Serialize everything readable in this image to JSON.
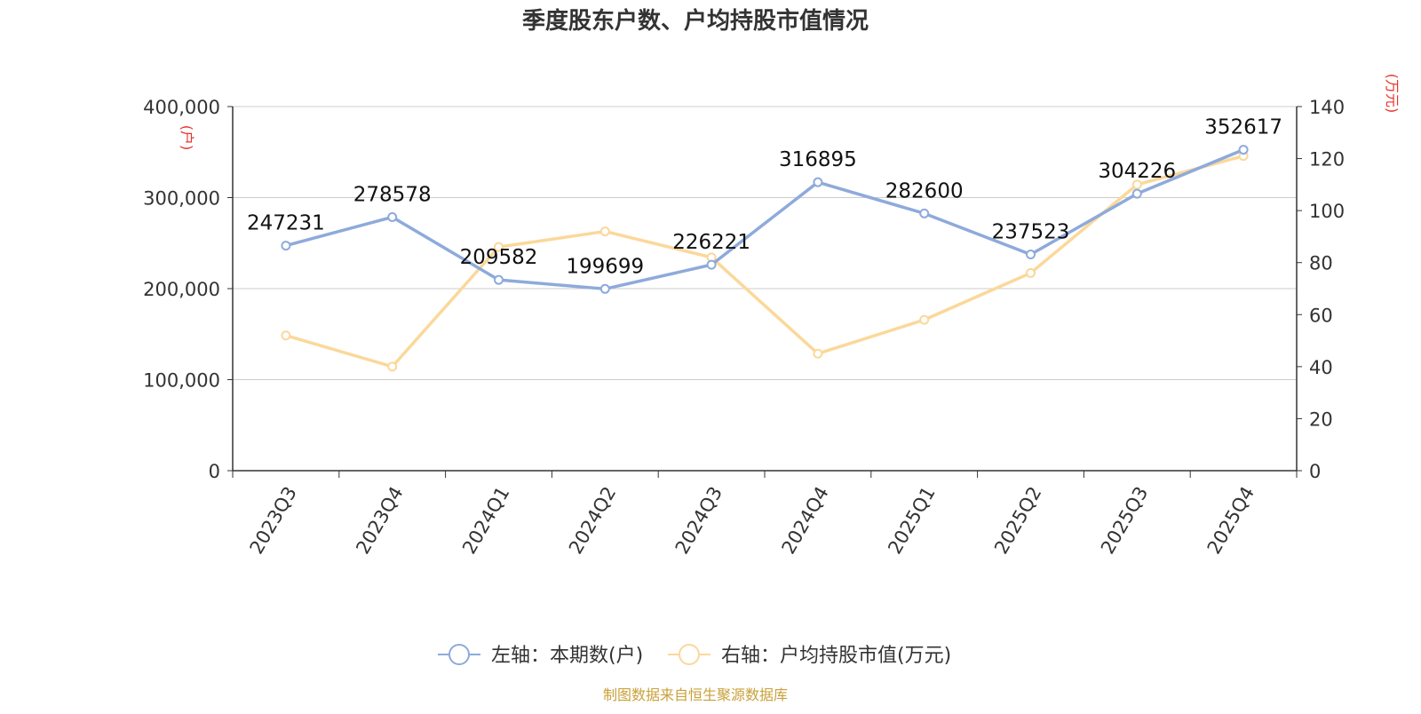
{
  "chart_data": {
    "type": "line",
    "title": "季度股东户数、户均持股市值情况",
    "categories": [
      "2023Q3",
      "2023Q4",
      "2024Q1",
      "2024Q2",
      "2024Q3",
      "2024Q4",
      "2025Q1",
      "2025Q2",
      "2025Q3",
      "2025Q4"
    ],
    "series": [
      {
        "name": "左轴：本期数(户)",
        "axis": "left",
        "color": "#8eaadb",
        "values": [
          247231,
          278578,
          209582,
          199699,
          226221,
          316895,
          282600,
          237523,
          304226,
          352617
        ],
        "data_labels": [
          "247231",
          "278578",
          "209582",
          "199699",
          "226221",
          "316895",
          "282600",
          "237523",
          "304226",
          "352617"
        ]
      },
      {
        "name": "右轴：户均持股市值(万元)",
        "axis": "right",
        "color": "#fbd89a",
        "values": [
          52,
          40,
          86,
          92,
          82,
          45,
          58,
          76,
          110,
          121
        ]
      }
    ],
    "left_axis": {
      "unit_label": "(户)",
      "ylim": [
        0,
        400000
      ],
      "ticks": [
        0,
        100000,
        200000,
        300000,
        400000
      ],
      "tick_labels": [
        "0",
        "100,000",
        "200,000",
        "300,000",
        "400,000"
      ]
    },
    "right_axis": {
      "unit_label": "(万元)",
      "ylim": [
        0,
        140
      ],
      "ticks": [
        0,
        20,
        40,
        60,
        80,
        100,
        120,
        140
      ],
      "tick_labels": [
        "0",
        "20",
        "40",
        "60",
        "80",
        "100",
        "120",
        "140"
      ]
    },
    "grid": true,
    "legend_position": "bottom-center",
    "source_note": "制图数据来自恒生聚源数据库",
    "colors": {
      "axis_unit": "#e8332b",
      "source": "#c9a13a",
      "grid": "#cccccc",
      "axis": "#333333"
    }
  }
}
